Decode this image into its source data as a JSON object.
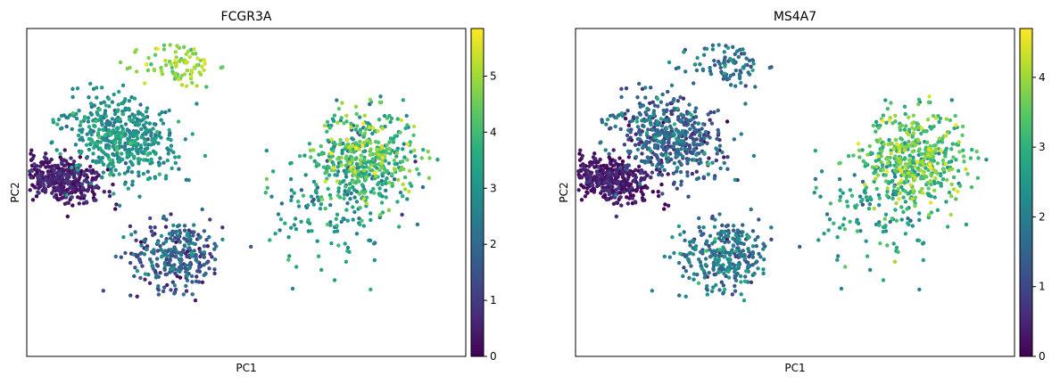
{
  "chart_data": [
    {
      "type": "scatter",
      "title": "FCGR3A",
      "xlabel": "PC1",
      "ylabel": "PC2",
      "colormap": "viridis",
      "colorbar": {
        "min": 0,
        "max": 5.85,
        "ticks": [
          "0",
          "1",
          "2",
          "3",
          "4",
          "5"
        ]
      },
      "xlim": [
        -7,
        14
      ],
      "ylim": [
        -9.5,
        7.5
      ],
      "grid": false,
      "legend": "none",
      "clusters": [
        {
          "cx": -5.5,
          "cy": -0.3,
          "sx": 1.1,
          "sy": 0.6,
          "n": 420,
          "rot": -0.3,
          "vmean": 0.35,
          "vsd": 0.35
        },
        {
          "cx": -2.5,
          "cy": 1.8,
          "sx": 1.3,
          "sy": 1.0,
          "n": 500,
          "rot": -0.55,
          "vmean": 2.9,
          "vsd": 0.55
        },
        {
          "cx": 0.3,
          "cy": 5.6,
          "sx": 0.9,
          "sy": 0.6,
          "n": 90,
          "rot": 0.0,
          "vmean": 4.8,
          "vsd": 0.45
        },
        {
          "cx": 0.2,
          "cy": -4.2,
          "sx": 1.1,
          "sy": 0.9,
          "n": 300,
          "rot": 0.0,
          "vmean": 1.6,
          "vsd": 0.7
        },
        {
          "cx": 9.2,
          "cy": 0.8,
          "sx": 1.2,
          "sy": 1.2,
          "n": 460,
          "rot": 0.0,
          "vmean": 3.8,
          "vsd": 0.9
        },
        {
          "cx": 7.5,
          "cy": -1.8,
          "sx": 1.5,
          "sy": 1.6,
          "n": 140,
          "rot": 0.0,
          "vmean": 3.0,
          "vsd": 0.6
        }
      ]
    },
    {
      "type": "scatter",
      "title": "MS4A7",
      "xlabel": "PC1",
      "ylabel": "PC2",
      "colormap": "viridis",
      "colorbar": {
        "min": 0,
        "max": 4.7,
        "ticks": [
          "0",
          "1",
          "2",
          "3",
          "4"
        ]
      },
      "xlim": [
        -7,
        14
      ],
      "ylim": [
        -9.5,
        7.5
      ],
      "grid": false,
      "legend": "none",
      "clusters": [
        {
          "cx": -5.5,
          "cy": -0.3,
          "sx": 1.1,
          "sy": 0.6,
          "n": 420,
          "rot": -0.3,
          "vmean": 0.2,
          "vsd": 0.25
        },
        {
          "cx": -2.5,
          "cy": 1.8,
          "sx": 1.3,
          "sy": 1.0,
          "n": 500,
          "rot": -0.55,
          "vmean": 1.3,
          "vsd": 0.6
        },
        {
          "cx": 0.3,
          "cy": 5.6,
          "sx": 0.9,
          "sy": 0.6,
          "n": 90,
          "rot": 0.0,
          "vmean": 1.8,
          "vsd": 0.5
        },
        {
          "cx": 0.2,
          "cy": -4.2,
          "sx": 1.1,
          "sy": 0.9,
          "n": 300,
          "rot": 0.0,
          "vmean": 1.8,
          "vsd": 0.5
        },
        {
          "cx": 9.2,
          "cy": 0.8,
          "sx": 1.2,
          "sy": 1.2,
          "n": 460,
          "rot": 0.0,
          "vmean": 3.4,
          "vsd": 0.6
        },
        {
          "cx": 7.5,
          "cy": -1.8,
          "sx": 1.5,
          "sy": 1.6,
          "n": 140,
          "rot": 0.0,
          "vmean": 2.7,
          "vsd": 0.5
        }
      ]
    }
  ]
}
